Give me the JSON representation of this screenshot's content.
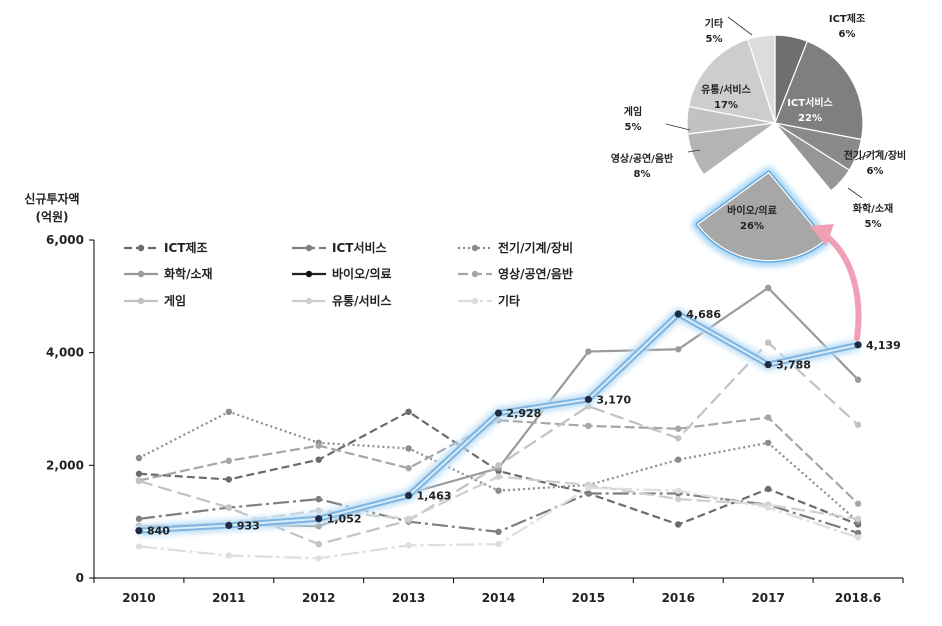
{
  "chart_data": [
    {
      "type": "line",
      "ylabel": "신규투자액\n(억원)",
      "ylim": [
        0,
        6000
      ],
      "yticks": [
        "0",
        "2,000",
        "4,000",
        "6,000"
      ],
      "x": [
        "2010",
        "2011",
        "2012",
        "2013",
        "2014",
        "2015",
        "2016",
        "2017",
        "2018.6"
      ],
      "legend_position": "top",
      "highlighted_series": "바이오/의료",
      "series": [
        {
          "name": "ICT제조",
          "color": "#6b6b6b",
          "dash": "8,4",
          "values": [
            1850,
            1750,
            2100,
            2950,
            1900,
            1500,
            950,
            1580,
            950
          ]
        },
        {
          "name": "ICT서비스",
          "color": "#7f7f7f",
          "dash": "16,4,3,4",
          "values": [
            1050,
            1250,
            1400,
            1000,
            820,
            1500,
            1500,
            1300,
            800
          ]
        },
        {
          "name": "전기/기계/장비",
          "color": "#8c8c8c",
          "dash": "2,3",
          "values": [
            2130,
            2950,
            2400,
            2300,
            1550,
            1650,
            2100,
            2400,
            1000
          ]
        },
        {
          "name": "화학/소재",
          "color": "#9a9a9a",
          "dash": "",
          "values": [
            920,
            950,
            920,
            1500,
            1950,
            4020,
            4060,
            5150,
            3520
          ]
        },
        {
          "name": "바이오/의료",
          "color": "#1f2a44",
          "dash": "",
          "values": [
            840,
            933,
            1052,
            1463,
            2928,
            3170,
            4686,
            3788,
            4139
          ],
          "labels": [
            "840",
            "933",
            "1,052",
            "1,463",
            "2,928",
            "3,170",
            "4,686",
            "3,788",
            "4,139"
          ]
        },
        {
          "name": "영상/공연/음반",
          "color": "#a6a6a6",
          "dash": "10,4",
          "values": [
            1730,
            2080,
            2350,
            1950,
            2800,
            2700,
            2650,
            2850,
            1320
          ]
        },
        {
          "name": "게임",
          "color": "#c2c2c2",
          "dash": "14,6",
          "values": [
            1720,
            1250,
            600,
            1020,
            2000,
            3050,
            2480,
            4180,
            2720
          ]
        },
        {
          "name": "유통/서비스",
          "color": "#cfcfcf",
          "dash": "14,5",
          "values": [
            900,
            980,
            1200,
            1050,
            1800,
            1650,
            1400,
            1300,
            1050
          ]
        },
        {
          "name": "기타",
          "color": "#dedede",
          "dash": "18,4,3,4",
          "values": [
            560,
            400,
            350,
            580,
            600,
            1600,
            1550,
            1250,
            720
          ]
        }
      ]
    },
    {
      "type": "pie",
      "slices": [
        {
          "name": "ICT제조",
          "label": "6%",
          "value": 6,
          "color": "#6f6f6f"
        },
        {
          "name": "ICT서비스",
          "label": "22%",
          "value": 22,
          "color": "#7f7f7f"
        },
        {
          "name": "전기/기계/장비",
          "label": "6%",
          "value": 6,
          "color": "#8a8a8a"
        },
        {
          "name": "화학/소재",
          "label": "5%",
          "value": 5,
          "color": "#969696"
        },
        {
          "name": "바이오/의료",
          "label": "26%",
          "value": 26,
          "color": "#a7a7a7",
          "exploded": true
        },
        {
          "name": "영상/공연/음반",
          "label": "8%",
          "value": 8,
          "color": "#b4b4b4"
        },
        {
          "name": "게임",
          "label": "5%",
          "value": 5,
          "color": "#c2c2c2"
        },
        {
          "name": "유통/서비스",
          "label": "17%",
          "value": 17,
          "color": "#cdcdcd"
        },
        {
          "name": "기타",
          "label": "5%",
          "value": 5,
          "color": "#dcdcdc"
        }
      ]
    }
  ]
}
